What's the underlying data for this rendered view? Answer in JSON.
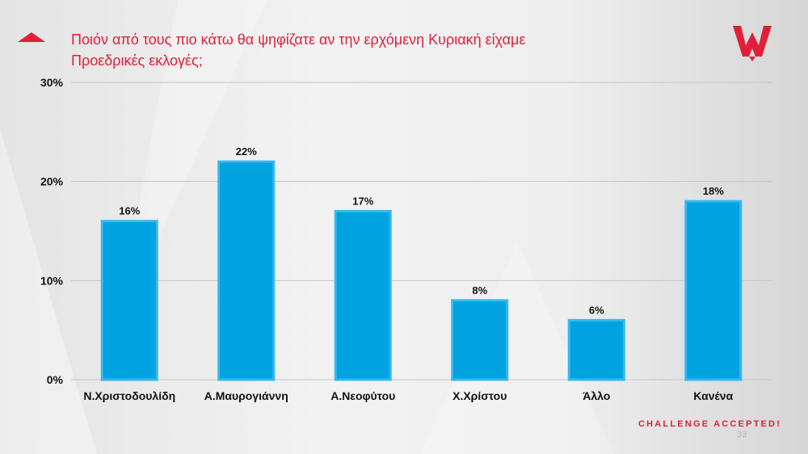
{
  "title": "Ποιόν από τους πιο κάτω θα ψηφίζατε αν την ερχόμενη Κυριακή είχαμε Προεδρικές εκλογές;",
  "tagline": "CHALLENGE ACCEPTED!",
  "page_number": "33",
  "colors": {
    "accent": "#e0203a",
    "bar": "#00a3e0",
    "bar_border": "#36b8f2"
  },
  "icons": {
    "marker": "triangle-up-icon",
    "logo": "w-brand-logo"
  },
  "chart_data": {
    "type": "bar",
    "title": "Ποιόν από τους πιο κάτω θα ψηφίζατε αν την ερχόμενη Κυριακή είχαμε Προεδρικές εκλογές;",
    "categories": [
      "Ν.Χριστοδουλίδη",
      "Α.Μαυρογιάννη",
      "Α.Νεοφύτου",
      "Χ.Χρίστου",
      "Άλλο",
      "Κανένα"
    ],
    "values": [
      16,
      22,
      17,
      8,
      6,
      18
    ],
    "value_labels": [
      "16%",
      "22%",
      "17%",
      "8%",
      "6%",
      "18%"
    ],
    "yticks": [
      "0%",
      "10%",
      "20%",
      "30%"
    ],
    "ytick_values": [
      0,
      10,
      20,
      30
    ],
    "ylim": [
      0,
      30
    ],
    "xlabel": "",
    "ylabel": "",
    "grid": true,
    "legend": "none"
  }
}
